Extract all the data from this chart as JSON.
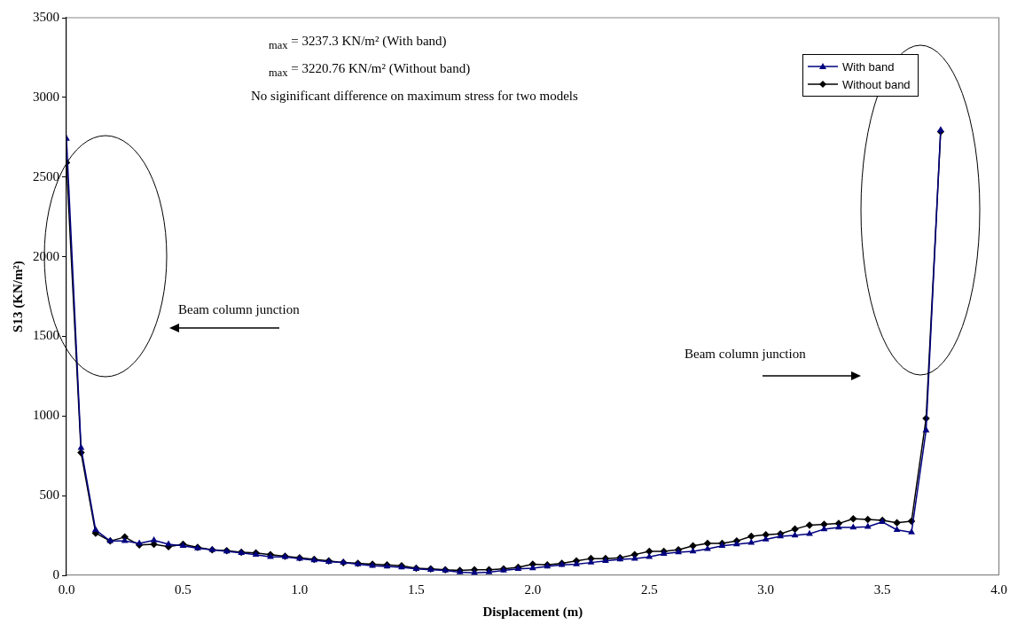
{
  "chart_data": {
    "type": "line",
    "xlabel": "Displacement (m)",
    "ylabel": "S13 (KN/m²)",
    "annotations": [
      "$_{max}$ = 3237.3 KN/m² (With band)",
      "$_{max}$ = 3220.76 KN/m² (Without band)",
      "No siginificant difference on maximum stress for two models",
      "Beam column junction",
      "Beam column junction"
    ],
    "x": [
      0,
      0.0625,
      0.125,
      0.1875,
      0.25,
      0.3125,
      0.375,
      0.4375,
      0.5,
      0.5625,
      0.625,
      0.6875,
      0.75,
      0.8125,
      0.875,
      0.9375,
      1.0,
      1.0625,
      1.125,
      1.1875,
      1.25,
      1.3125,
      1.375,
      1.4375,
      1.5,
      1.5625,
      1.625,
      1.6875,
      1.75,
      1.8125,
      1.875,
      1.9375,
      2.0,
      2.0625,
      2.125,
      2.1875,
      2.25,
      2.3125,
      2.375,
      2.4375,
      2.5,
      2.5625,
      2.625,
      2.6875,
      2.75,
      2.8125,
      2.875,
      2.9375,
      3.0,
      3.0625,
      3.125,
      3.1875,
      3.25,
      3.3125,
      3.375,
      3.4375,
      3.5,
      3.5625,
      3.625,
      3.6875,
      3.75
    ],
    "series": [
      {
        "name": "With band",
        "color": "#000080",
        "marker": "triangle",
        "values": [
          2740,
          800,
          285,
          215,
          215,
          200,
          220,
          195,
          185,
          170,
          160,
          150,
          140,
          130,
          115,
          115,
          105,
          95,
          85,
          80,
          70,
          60,
          55,
          50,
          40,
          35,
          30,
          20,
          15,
          20,
          30,
          40,
          45,
          55,
          65,
          70,
          80,
          90,
          100,
          105,
          115,
          135,
          145,
          150,
          165,
          185,
          195,
          205,
          225,
          245,
          250,
          260,
          290,
          300,
          300,
          305,
          335,
          285,
          270,
          910,
          2795
        ]
      },
      {
        "name": "Without band",
        "color": "#000000",
        "marker": "diamond",
        "values": [
          2590,
          770,
          265,
          215,
          240,
          190,
          195,
          180,
          195,
          175,
          160,
          155,
          145,
          140,
          130,
          120,
          110,
          100,
          90,
          80,
          75,
          70,
          65,
          60,
          45,
          40,
          35,
          30,
          35,
          35,
          40,
          50,
          70,
          65,
          75,
          90,
          105,
          105,
          110,
          130,
          150,
          150,
          160,
          185,
          200,
          200,
          215,
          245,
          255,
          260,
          290,
          315,
          320,
          325,
          355,
          350,
          345,
          330,
          340,
          985,
          2785
        ]
      }
    ],
    "xlim": [
      0,
      4
    ],
    "xticks": [
      {
        "value": 0,
        "label": "0.0"
      },
      0.5,
      {
        "value": 1,
        "label": "1.0"
      },
      1.5,
      {
        "value": 2,
        "label": "2.0"
      },
      2.5,
      {
        "value": 3,
        "label": "3.0"
      },
      3.5,
      {
        "value": 4,
        "label": "4.0"
      }
    ],
    "ylim": [
      0,
      3500
    ],
    "yticks": [
      0,
      500,
      1000,
      1500,
      2000,
      2500,
      3000,
      3500
    ],
    "grid": false,
    "legend": "top right",
    "line_style": "solid"
  }
}
